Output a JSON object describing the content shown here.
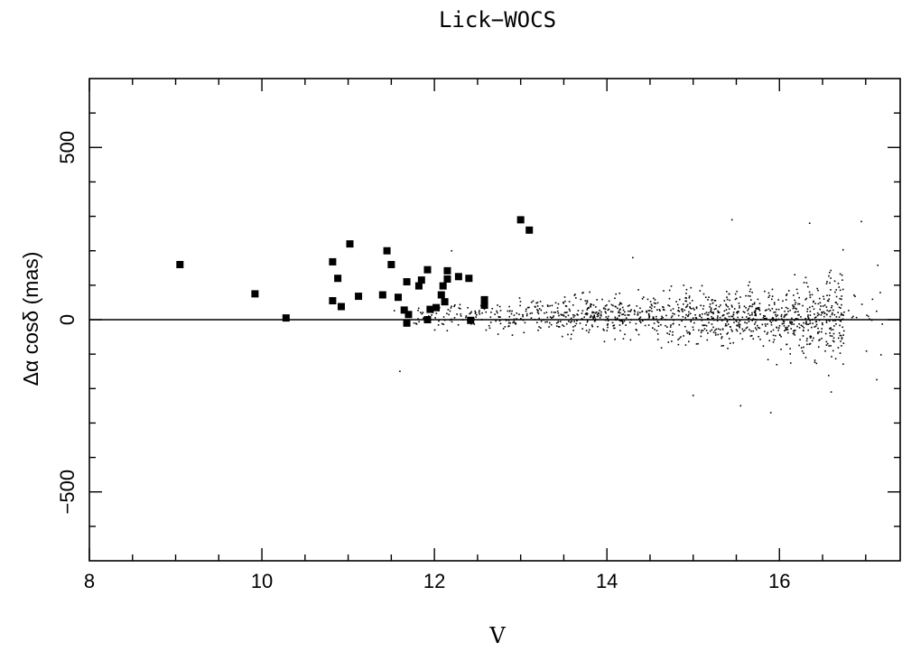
{
  "chart_data": {
    "type": "scatter",
    "title": "Lick−WOCS",
    "xlabel": "V",
    "ylabel": "Δα cosδ (mas)",
    "xlim": [
      8,
      17.4
    ],
    "ylim": [
      -700,
      700
    ],
    "xticks": [
      8,
      10,
      12,
      14,
      16
    ],
    "yticks": [
      -500,
      0,
      500
    ],
    "x_tick_labels": [
      "8",
      "10",
      "12",
      "14",
      "16"
    ],
    "y_tick_labels": [
      "−500",
      "0",
      "500"
    ],
    "x_minor_step": 0.5,
    "y_minor_step": 100,
    "reference_line_y": 0,
    "grid": false,
    "legend": "none",
    "series": [
      {
        "marker": "square",
        "points": [
          [
            9.05,
            160
          ],
          [
            9.92,
            75
          ],
          [
            10.28,
            5
          ],
          [
            10.82,
            168
          ],
          [
            10.82,
            55
          ],
          [
            10.88,
            120
          ],
          [
            10.92,
            38
          ],
          [
            11.02,
            220
          ],
          [
            11.12,
            68
          ],
          [
            11.4,
            72
          ],
          [
            11.45,
            200
          ],
          [
            11.5,
            160
          ],
          [
            11.58,
            65
          ],
          [
            11.65,
            28
          ],
          [
            11.68,
            110
          ],
          [
            11.68,
            -10
          ],
          [
            11.7,
            15
          ],
          [
            11.82,
            98
          ],
          [
            11.85,
            115
          ],
          [
            11.92,
            145
          ],
          [
            11.92,
            0
          ],
          [
            11.95,
            30
          ],
          [
            12.02,
            35
          ],
          [
            12.08,
            72
          ],
          [
            12.1,
            98
          ],
          [
            12.12,
            52
          ],
          [
            12.15,
            118
          ],
          [
            12.15,
            142
          ],
          [
            12.28,
            125
          ],
          [
            12.4,
            120
          ],
          [
            12.42,
            -2
          ],
          [
            12.58,
            42
          ],
          [
            12.58,
            58
          ],
          [
            13.0,
            290
          ],
          [
            13.1,
            260
          ]
        ]
      },
      {
        "marker": "dot",
        "point_count": 1200,
        "x_range": [
          11.5,
          17.2
        ],
        "description_points_sample": [
          [
            11.6,
            -150
          ],
          [
            12.2,
            200
          ],
          [
            12.9,
            25
          ],
          [
            13.8,
            80
          ],
          [
            14.3,
            180
          ],
          [
            15.0,
            -220
          ],
          [
            15.45,
            290
          ],
          [
            15.55,
            -250
          ],
          [
            15.9,
            -270
          ],
          [
            16.35,
            280
          ],
          [
            16.6,
            -210
          ],
          [
            16.95,
            285
          ]
        ]
      }
    ]
  }
}
